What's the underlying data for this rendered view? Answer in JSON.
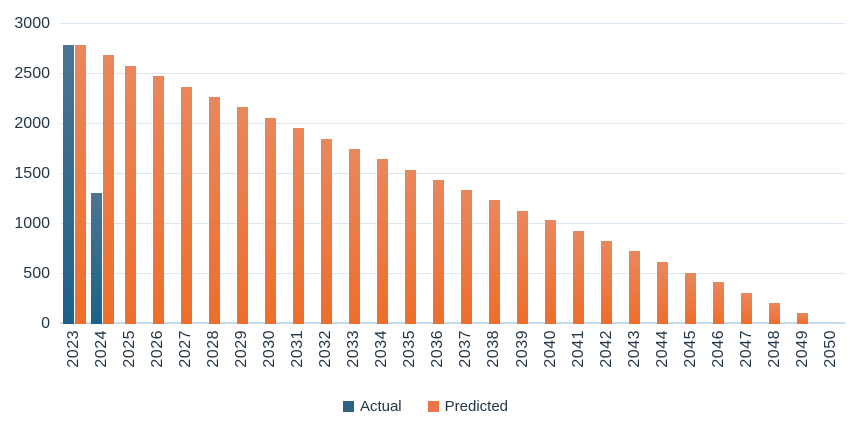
{
  "chart_data": {
    "type": "bar",
    "title": "",
    "xlabel": "",
    "ylabel": "",
    "categories": [
      "2023",
      "2024",
      "2025",
      "2026",
      "2027",
      "2028",
      "2029",
      "2030",
      "2031",
      "2032",
      "2033",
      "2034",
      "2035",
      "2036",
      "2037",
      "2038",
      "2039",
      "2040",
      "2041",
      "2042",
      "2043",
      "2044",
      "2045",
      "2046",
      "2047",
      "2048",
      "2049",
      "2050"
    ],
    "series": [
      {
        "name": "Actual",
        "key": "actual",
        "color": "#2E607F",
        "gradient_top": "#4C7592",
        "gradient_bottom": "#1C618A",
        "values": [
          2790,
          1310,
          null,
          null,
          null,
          null,
          null,
          null,
          null,
          null,
          null,
          null,
          null,
          null,
          null,
          null,
          null,
          null,
          null,
          null,
          null,
          null,
          null,
          null,
          null,
          null,
          null,
          null
        ]
      },
      {
        "name": "Predicted",
        "key": "predicted",
        "color": "#ED7448",
        "gradient_top": "#E9875C",
        "gradient_bottom": "#EE6E2B",
        "values": [
          2790,
          2690,
          2580,
          2480,
          2370,
          2270,
          2170,
          2060,
          1960,
          1850,
          1750,
          1650,
          1540,
          1440,
          1340,
          1240,
          1130,
          1040,
          930,
          830,
          730,
          620,
          510,
          420,
          310,
          210,
          110,
          0
        ]
      }
    ],
    "ylim": [
      0,
      3000
    ],
    "yticks": [
      0,
      500,
      1000,
      1500,
      2000,
      2500,
      3000
    ],
    "grid": true,
    "legend_position": "bottom",
    "legend": [
      "Actual",
      "Predicted"
    ]
  },
  "style": {
    "background": "#FFFFFF",
    "grid_color": "#DAE6F2",
    "baseline_color": "#C6DBEC",
    "tick_label_color": "#233648",
    "actual_color": "#2E607F",
    "predicted_color": "#ED7448"
  }
}
